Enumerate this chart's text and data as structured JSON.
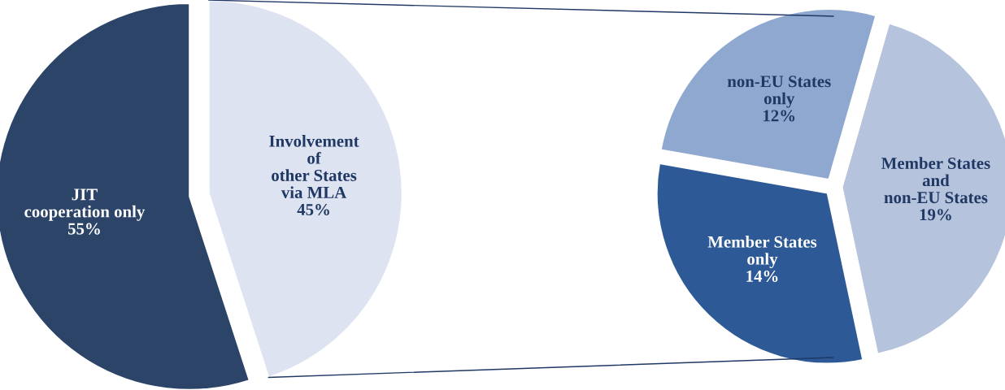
{
  "chart_data": [
    {
      "type": "pie",
      "categories": [
        "JIT\ncooperation only",
        "Involvement\nof\nother States\nvia MLA"
      ],
      "values": [
        55,
        45
      ],
      "colors": [
        "#2b4468",
        "#dde3f0"
      ],
      "value_labels": [
        "55%",
        "45%"
      ]
    },
    {
      "type": "pie",
      "categories": [
        "non-EU States\nonly",
        "Member States\nand\nnon-EU States",
        "Member States\nonly"
      ],
      "values": [
        12,
        19,
        14
      ],
      "colors": [
        "#8fa8d0",
        "#b6c3dc",
        "#2d5a96"
      ],
      "value_labels": [
        "12%",
        "19%",
        "14%"
      ]
    }
  ]
}
